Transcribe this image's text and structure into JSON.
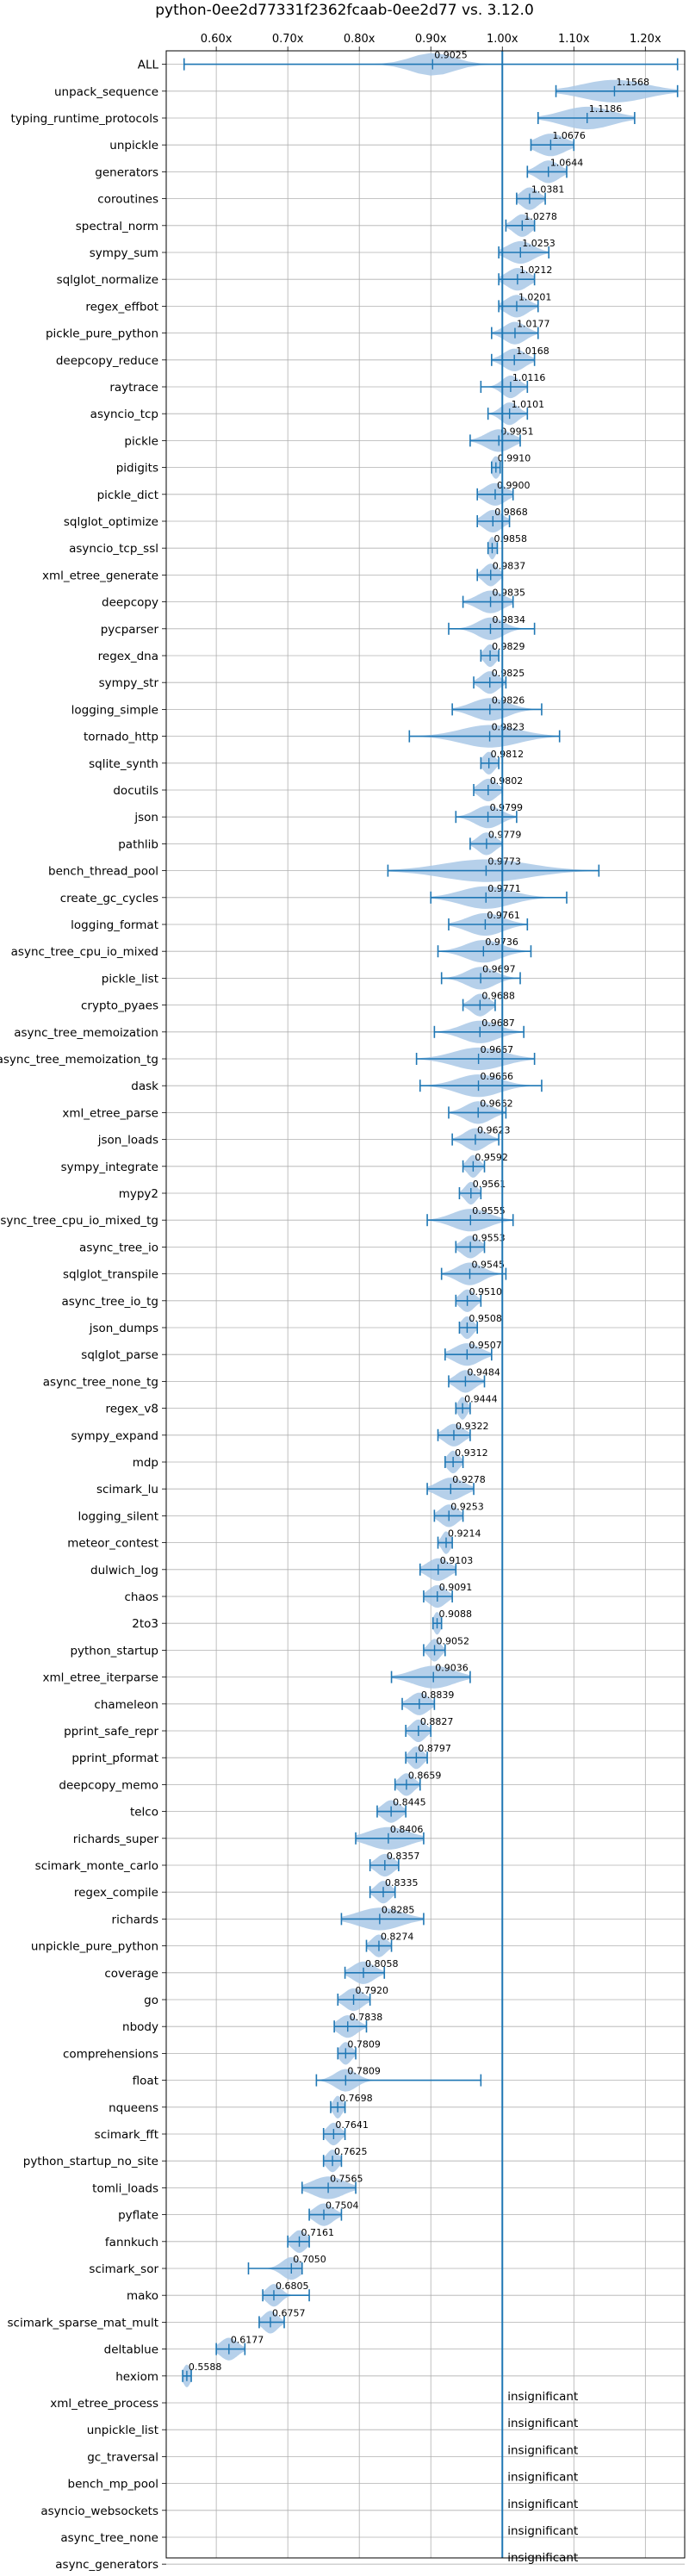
{
  "chart_data": {
    "type": "violin",
    "title": "python-0ee2d77331f2362fcaab-0ee2d77 vs. 3.12.0",
    "xlim": [
      0.53,
      1.255
    ],
    "reference_line": 1.0,
    "grid": true,
    "x_ticks": [
      0.6,
      0.7,
      0.8,
      0.9,
      1.0,
      1.1,
      1.2
    ],
    "x_tick_labels": [
      "0.60x",
      "0.70x",
      "0.80x",
      "0.90x",
      "1.00x",
      "1.10x",
      "1.20x"
    ],
    "colors": {
      "violin": "#a9c8e6",
      "line": "#1f77b4",
      "reference": "#1f77b4",
      "grid": "#b0b0b0"
    },
    "benchmarks": [
      {
        "name": "ALL",
        "value": 0.9025,
        "label": "0.9025",
        "min": 0.555,
        "max": 1.245,
        "spread": 0.03
      },
      {
        "name": "unpack_sequence",
        "value": 1.1568,
        "label": "1.1568",
        "min": 1.075,
        "max": 1.245,
        "spread": 0.045
      },
      {
        "name": "typing_runtime_protocols",
        "value": 1.1186,
        "label": "1.1186",
        "min": 1.05,
        "max": 1.185,
        "spread": 0.035
      },
      {
        "name": "unpickle",
        "value": 1.0676,
        "label": "1.0676",
        "min": 1.04,
        "max": 1.1,
        "spread": 0.02
      },
      {
        "name": "generators",
        "value": 1.0644,
        "label": "1.0644",
        "min": 1.035,
        "max": 1.09,
        "spread": 0.015
      },
      {
        "name": "coroutines",
        "value": 1.0381,
        "label": "1.0381",
        "min": 1.02,
        "max": 1.06,
        "spread": 0.012
      },
      {
        "name": "spectral_norm",
        "value": 1.0278,
        "label": "1.0278",
        "min": 1.005,
        "max": 1.045,
        "spread": 0.012
      },
      {
        "name": "sympy_sum",
        "value": 1.0253,
        "label": "1.0253",
        "min": 0.995,
        "max": 1.065,
        "spread": 0.018
      },
      {
        "name": "sqlglot_normalize",
        "value": 1.0212,
        "label": "1.0212",
        "min": 0.995,
        "max": 1.045,
        "spread": 0.015
      },
      {
        "name": "regex_effbot",
        "value": 1.0201,
        "label": "1.0201",
        "min": 0.995,
        "max": 1.05,
        "spread": 0.015
      },
      {
        "name": "pickle_pure_python",
        "value": 1.0177,
        "label": "1.0177",
        "min": 0.985,
        "max": 1.05,
        "spread": 0.015
      },
      {
        "name": "deepcopy_reduce",
        "value": 1.0168,
        "label": "1.0168",
        "min": 0.985,
        "max": 1.045,
        "spread": 0.015
      },
      {
        "name": "raytrace",
        "value": 1.0116,
        "label": "1.0116",
        "min": 0.97,
        "max": 1.035,
        "spread": 0.012
      },
      {
        "name": "asyncio_tcp",
        "value": 1.0101,
        "label": "1.0101",
        "min": 0.98,
        "max": 1.035,
        "spread": 0.012
      },
      {
        "name": "pickle",
        "value": 0.9951,
        "label": "0.9951",
        "min": 0.955,
        "max": 1.025,
        "spread": 0.018
      },
      {
        "name": "pidigits",
        "value": 0.991,
        "label": "0.9910",
        "min": 0.985,
        "max": 0.997,
        "spread": 0.006
      },
      {
        "name": "pickle_dict",
        "value": 0.99,
        "label": "0.9900",
        "min": 0.965,
        "max": 1.015,
        "spread": 0.015
      },
      {
        "name": "sqlglot_optimize",
        "value": 0.9868,
        "label": "0.9868",
        "min": 0.965,
        "max": 1.01,
        "spread": 0.013
      },
      {
        "name": "asyncio_tcp_ssl",
        "value": 0.9858,
        "label": "0.9858",
        "min": 0.98,
        "max": 0.993,
        "spread": 0.005
      },
      {
        "name": "xml_etree_generate",
        "value": 0.9837,
        "label": "0.9837",
        "min": 0.965,
        "max": 1.0,
        "spread": 0.01
      },
      {
        "name": "deepcopy",
        "value": 0.9835,
        "label": "0.9835",
        "min": 0.945,
        "max": 1.015,
        "spread": 0.018
      },
      {
        "name": "pycparser",
        "value": 0.9834,
        "label": "0.9834",
        "min": 0.925,
        "max": 1.045,
        "spread": 0.018
      },
      {
        "name": "regex_dna",
        "value": 0.9829,
        "label": "0.9829",
        "min": 0.97,
        "max": 0.995,
        "spread": 0.008
      },
      {
        "name": "sympy_str",
        "value": 0.9825,
        "label": "0.9825",
        "min": 0.96,
        "max": 1.005,
        "spread": 0.012
      },
      {
        "name": "logging_simple",
        "value": 0.9826,
        "label": "0.9826",
        "min": 0.93,
        "max": 1.055,
        "spread": 0.025
      },
      {
        "name": "tornado_http",
        "value": 0.9823,
        "label": "0.9823",
        "min": 0.87,
        "max": 1.08,
        "spread": 0.04
      },
      {
        "name": "sqlite_synth",
        "value": 0.9812,
        "label": "0.9812",
        "min": 0.97,
        "max": 0.995,
        "spread": 0.008
      },
      {
        "name": "docutils",
        "value": 0.9802,
        "label": "0.9802",
        "min": 0.96,
        "max": 1.0,
        "spread": 0.012
      },
      {
        "name": "json",
        "value": 0.9799,
        "label": "0.9799",
        "min": 0.935,
        "max": 1.02,
        "spread": 0.018
      },
      {
        "name": "pathlib",
        "value": 0.9779,
        "label": "0.9779",
        "min": 0.955,
        "max": 1.0,
        "spread": 0.012
      },
      {
        "name": "bench_thread_pool",
        "value": 0.9773,
        "label": "0.9773",
        "min": 0.84,
        "max": 1.135,
        "spread": 0.06
      },
      {
        "name": "create_gc_cycles",
        "value": 0.9771,
        "label": "0.9771",
        "min": 0.9,
        "max": 1.09,
        "spread": 0.035
      },
      {
        "name": "logging_format",
        "value": 0.9761,
        "label": "0.9761",
        "min": 0.925,
        "max": 1.035,
        "spread": 0.025
      },
      {
        "name": "async_tree_cpu_io_mixed",
        "value": 0.9736,
        "label": "0.9736",
        "min": 0.91,
        "max": 1.04,
        "spread": 0.025
      },
      {
        "name": "pickle_list",
        "value": 0.9697,
        "label": "0.9697",
        "min": 0.915,
        "max": 1.025,
        "spread": 0.02
      },
      {
        "name": "crypto_pyaes",
        "value": 0.9688,
        "label": "0.9688",
        "min": 0.945,
        "max": 0.99,
        "spread": 0.012
      },
      {
        "name": "async_tree_memoization",
        "value": 0.9687,
        "label": "0.9687",
        "min": 0.905,
        "max": 1.03,
        "spread": 0.025
      },
      {
        "name": "async_tree_memoization_tg",
        "value": 0.9667,
        "label": "0.9667",
        "min": 0.88,
        "max": 1.045,
        "spread": 0.035
      },
      {
        "name": "dask",
        "value": 0.9666,
        "label": "0.9666",
        "min": 0.885,
        "max": 1.055,
        "spread": 0.03
      },
      {
        "name": "xml_etree_parse",
        "value": 0.9662,
        "label": "0.9662",
        "min": 0.925,
        "max": 1.005,
        "spread": 0.018
      },
      {
        "name": "json_loads",
        "value": 0.9623,
        "label": "0.9623",
        "min": 0.93,
        "max": 0.995,
        "spread": 0.015
      },
      {
        "name": "sympy_integrate",
        "value": 0.9592,
        "label": "0.9592",
        "min": 0.945,
        "max": 0.975,
        "spread": 0.008
      },
      {
        "name": "mypy2",
        "value": 0.9561,
        "label": "0.9561",
        "min": 0.94,
        "max": 0.97,
        "spread": 0.008
      },
      {
        "name": "async_tree_cpu_io_mixed_tg",
        "value": 0.9555,
        "label": "0.9555",
        "min": 0.895,
        "max": 1.015,
        "spread": 0.025
      },
      {
        "name": "async_tree_io",
        "value": 0.9553,
        "label": "0.9553",
        "min": 0.935,
        "max": 0.975,
        "spread": 0.012
      },
      {
        "name": "sqlglot_transpile",
        "value": 0.9545,
        "label": "0.9545",
        "min": 0.915,
        "max": 1.005,
        "spread": 0.018
      },
      {
        "name": "async_tree_io_tg",
        "value": 0.951,
        "label": "0.9510",
        "min": 0.935,
        "max": 0.97,
        "spread": 0.01
      },
      {
        "name": "json_dumps",
        "value": 0.9508,
        "label": "0.9508",
        "min": 0.94,
        "max": 0.965,
        "spread": 0.008
      },
      {
        "name": "sqlglot_parse",
        "value": 0.9507,
        "label": "0.9507",
        "min": 0.92,
        "max": 0.985,
        "spread": 0.018
      },
      {
        "name": "async_tree_none_tg",
        "value": 0.9484,
        "label": "0.9484",
        "min": 0.925,
        "max": 0.975,
        "spread": 0.013
      },
      {
        "name": "regex_v8",
        "value": 0.9444,
        "label": "0.9444",
        "min": 0.935,
        "max": 0.955,
        "spread": 0.006
      },
      {
        "name": "sympy_expand",
        "value": 0.9322,
        "label": "0.9322",
        "min": 0.91,
        "max": 0.955,
        "spread": 0.013
      },
      {
        "name": "mdp",
        "value": 0.9312,
        "label": "0.9312",
        "min": 0.92,
        "max": 0.945,
        "spread": 0.008
      },
      {
        "name": "scimark_lu",
        "value": 0.9278,
        "label": "0.9278",
        "min": 0.895,
        "max": 0.96,
        "spread": 0.018
      },
      {
        "name": "logging_silent",
        "value": 0.9253,
        "label": "0.9253",
        "min": 0.905,
        "max": 0.945,
        "spread": 0.012
      },
      {
        "name": "meteor_contest",
        "value": 0.9214,
        "label": "0.9214",
        "min": 0.91,
        "max": 0.93,
        "spread": 0.006
      },
      {
        "name": "dulwich_log",
        "value": 0.9103,
        "label": "0.9103",
        "min": 0.885,
        "max": 0.935,
        "spread": 0.015
      },
      {
        "name": "chaos",
        "value": 0.9091,
        "label": "0.9091",
        "min": 0.89,
        "max": 0.93,
        "spread": 0.012
      },
      {
        "name": "2to3",
        "value": 0.9088,
        "label": "0.9088",
        "min": 0.903,
        "max": 0.915,
        "spread": 0.005
      },
      {
        "name": "python_startup",
        "value": 0.9052,
        "label": "0.9052",
        "min": 0.89,
        "max": 0.92,
        "spread": 0.008
      },
      {
        "name": "xml_etree_iterparse",
        "value": 0.9036,
        "label": "0.9036",
        "min": 0.845,
        "max": 0.955,
        "spread": 0.028
      },
      {
        "name": "chameleon",
        "value": 0.8839,
        "label": "0.8839",
        "min": 0.86,
        "max": 0.905,
        "spread": 0.013
      },
      {
        "name": "pprint_safe_repr",
        "value": 0.8827,
        "label": "0.8827",
        "min": 0.865,
        "max": 0.9,
        "spread": 0.01
      },
      {
        "name": "pprint_pformat",
        "value": 0.8797,
        "label": "0.8797",
        "min": 0.865,
        "max": 0.895,
        "spread": 0.009
      },
      {
        "name": "deepcopy_memo",
        "value": 0.8659,
        "label": "0.8659",
        "min": 0.85,
        "max": 0.885,
        "spread": 0.01
      },
      {
        "name": "telco",
        "value": 0.8445,
        "label": "0.8445",
        "min": 0.825,
        "max": 0.865,
        "spread": 0.012
      },
      {
        "name": "richards_super",
        "value": 0.8406,
        "label": "0.8406",
        "min": 0.795,
        "max": 0.89,
        "spread": 0.028
      },
      {
        "name": "scimark_monte_carlo",
        "value": 0.8357,
        "label": "0.8357",
        "min": 0.815,
        "max": 0.855,
        "spread": 0.012
      },
      {
        "name": "regex_compile",
        "value": 0.8335,
        "label": "0.8335",
        "min": 0.815,
        "max": 0.85,
        "spread": 0.01
      },
      {
        "name": "richards",
        "value": 0.8285,
        "label": "0.8285",
        "min": 0.775,
        "max": 0.89,
        "spread": 0.03
      },
      {
        "name": "unpickle_pure_python",
        "value": 0.8274,
        "label": "0.8274",
        "min": 0.81,
        "max": 0.845,
        "spread": 0.01
      },
      {
        "name": "coverage",
        "value": 0.8058,
        "label": "0.8058",
        "min": 0.78,
        "max": 0.835,
        "spread": 0.015
      },
      {
        "name": "go",
        "value": 0.792,
        "label": "0.7920",
        "min": 0.77,
        "max": 0.815,
        "spread": 0.013
      },
      {
        "name": "nbody",
        "value": 0.7838,
        "label": "0.7838",
        "min": 0.765,
        "max": 0.81,
        "spread": 0.013
      },
      {
        "name": "comprehensions",
        "value": 0.7809,
        "label": "0.7809",
        "min": 0.77,
        "max": 0.795,
        "spread": 0.008
      },
      {
        "name": "float",
        "value": 0.7809,
        "label": "0.7809",
        "min": 0.74,
        "max": 0.97,
        "spread": 0.015
      },
      {
        "name": "nqueens",
        "value": 0.7698,
        "label": "0.7698",
        "min": 0.76,
        "max": 0.78,
        "spread": 0.006
      },
      {
        "name": "scimark_fft",
        "value": 0.7641,
        "label": "0.7641",
        "min": 0.75,
        "max": 0.78,
        "spread": 0.009
      },
      {
        "name": "python_startup_no_site",
        "value": 0.7625,
        "label": "0.7625",
        "min": 0.75,
        "max": 0.775,
        "spread": 0.008
      },
      {
        "name": "tomli_loads",
        "value": 0.7565,
        "label": "0.7565",
        "min": 0.72,
        "max": 0.795,
        "spread": 0.022
      },
      {
        "name": "pyflate",
        "value": 0.7504,
        "label": "0.7504",
        "min": 0.73,
        "max": 0.775,
        "spread": 0.013
      },
      {
        "name": "fannkuch",
        "value": 0.7161,
        "label": "0.7161",
        "min": 0.7,
        "max": 0.73,
        "spread": 0.01
      },
      {
        "name": "scimark_sor",
        "value": 0.705,
        "label": "0.7050",
        "min": 0.645,
        "max": 0.72,
        "spread": 0.013
      },
      {
        "name": "mako",
        "value": 0.6805,
        "label": "0.6805",
        "min": 0.665,
        "max": 0.73,
        "spread": 0.01
      },
      {
        "name": "scimark_sparse_mat_mult",
        "value": 0.6757,
        "label": "0.6757",
        "min": 0.66,
        "max": 0.695,
        "spread": 0.01
      },
      {
        "name": "deltablue",
        "value": 0.6177,
        "label": "0.6177",
        "min": 0.6,
        "max": 0.64,
        "spread": 0.012
      },
      {
        "name": "hexiom",
        "value": 0.5588,
        "label": "0.5588",
        "min": 0.553,
        "max": 0.565,
        "spread": 0.005
      },
      {
        "name": "xml_etree_process",
        "label": "insignificant"
      },
      {
        "name": "unpickle_list",
        "label": "insignificant"
      },
      {
        "name": "gc_traversal",
        "label": "insignificant"
      },
      {
        "name": "bench_mp_pool",
        "label": "insignificant"
      },
      {
        "name": "asyncio_websockets",
        "label": "insignificant"
      },
      {
        "name": "async_tree_none",
        "label": "insignificant"
      },
      {
        "name": "async_generators",
        "label": "insignificant"
      }
    ]
  }
}
